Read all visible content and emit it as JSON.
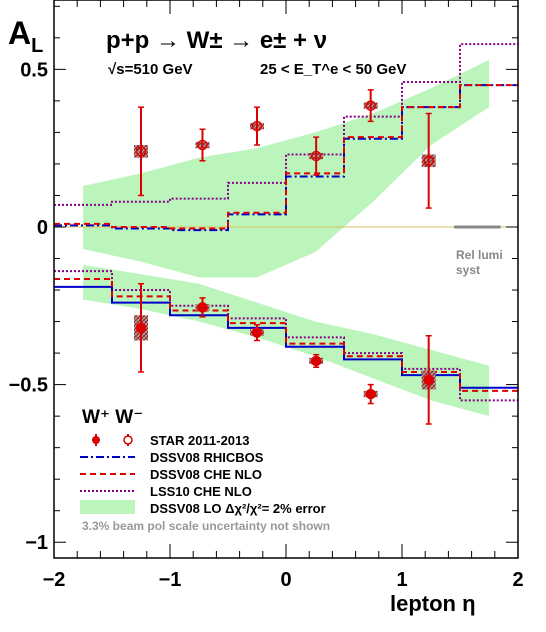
{
  "chart_data": {
    "type": "scatter",
    "y_axis_title": "A",
    "y_axis_title_sub": "L",
    "x_axis_title": "lepton  η",
    "reaction": "p+p → W± → e± + ν",
    "energy_label": "√s=510 GeV",
    "cut_label": "25 < E_T^e < 50 GeV",
    "legend_header": "W⁺ W⁻",
    "rel_lumi_label_1": "Rel lumi",
    "rel_lumi_label_2": "syst",
    "footnote": "3.3% beam pol scale uncertainty not shown",
    "xlim": [
      -2,
      2
    ],
    "ylim": [
      -1.05,
      0.72
    ],
    "x_ticks": [
      -2,
      -1,
      0,
      1,
      2
    ],
    "y_ticks": [
      -1,
      -0.5,
      0,
      0.5
    ],
    "x_tick_labels": [
      "−2",
      "−1",
      "0",
      "1",
      "2"
    ],
    "y_tick_labels": [
      "−1",
      "−0.5",
      "0",
      "0.5"
    ],
    "legend": [
      {
        "label": "STAR 2011-2013",
        "color": "#dd0000"
      },
      {
        "label": "DSSV08  RHICBOS",
        "color": "#0000cc"
      },
      {
        "label": "DSSV08  CHE NLO",
        "color": "#dd0000"
      },
      {
        "label": "LSS10 CHE NLO",
        "color": "#880088"
      },
      {
        "label": "DSSV08 LO  Δχ²/χ²= 2% error",
        "color": "#bbf5bb"
      }
    ],
    "data_wplus": [
      {
        "x": -1.25,
        "y": -0.32,
        "err": 0.14,
        "syst": 0.04
      },
      {
        "x": -0.72,
        "y": -0.255,
        "err": 0.03,
        "syst": 0.01
      },
      {
        "x": -0.25,
        "y": -0.335,
        "err": 0.025,
        "syst": 0.01
      },
      {
        "x": 0.26,
        "y": -0.425,
        "err": 0.02,
        "syst": 0.01
      },
      {
        "x": 0.73,
        "y": -0.53,
        "err": 0.03,
        "syst": 0.01
      },
      {
        "x": 1.23,
        "y": -0.485,
        "err": 0.14,
        "syst": 0.03
      }
    ],
    "data_wminus": [
      {
        "x": -1.25,
        "y": 0.24,
        "err": 0.14,
        "syst": 0.02
      },
      {
        "x": -0.72,
        "y": 0.26,
        "err": 0.05,
        "syst": 0.01
      },
      {
        "x": -0.25,
        "y": 0.32,
        "err": 0.06,
        "syst": 0.01
      },
      {
        "x": 0.26,
        "y": 0.225,
        "err": 0.06,
        "syst": 0.01
      },
      {
        "x": 0.73,
        "y": 0.385,
        "err": 0.05,
        "syst": 0.01
      },
      {
        "x": 1.23,
        "y": 0.21,
        "err": 0.15,
        "syst": 0.02
      }
    ],
    "bin_edges": [
      -2,
      -1.75,
      -1.5,
      -1.25,
      -1,
      -0.75,
      -0.5,
      -0.25,
      0,
      0.25,
      0.5,
      0.75,
      1,
      1.25,
      1.5,
      1.75,
      2
    ],
    "curve_rhicbos_wminus": [
      0.005,
      0.005,
      -0.005,
      -0.005,
      -0.01,
      -0.01,
      0.04,
      0.04,
      0.16,
      0.16,
      0.28,
      0.28,
      0.38,
      0.38,
      0.45,
      0.45
    ],
    "curve_che_wminus": [
      0.01,
      0.01,
      0.0,
      0.0,
      -0.005,
      -0.005,
      0.045,
      0.045,
      0.17,
      0.17,
      0.285,
      0.285,
      0.38,
      0.38,
      0.45,
      0.45
    ],
    "curve_lss_wminus": [
      0.07,
      0.07,
      0.08,
      0.08,
      0.09,
      0.09,
      0.14,
      0.14,
      0.23,
      0.23,
      0.35,
      0.35,
      0.46,
      0.46,
      0.58,
      0.58
    ],
    "curve_rhicbos_wplus": [
      -0.19,
      -0.19,
      -0.24,
      -0.24,
      -0.28,
      -0.28,
      -0.32,
      -0.32,
      -0.38,
      -0.38,
      -0.42,
      -0.42,
      -0.47,
      -0.47,
      -0.51,
      -0.51
    ],
    "curve_che_wplus": [
      -0.165,
      -0.165,
      -0.22,
      -0.22,
      -0.265,
      -0.265,
      -0.305,
      -0.305,
      -0.37,
      -0.37,
      -0.41,
      -0.41,
      -0.46,
      -0.46,
      -0.52,
      -0.52
    ],
    "curve_lss_wplus": [
      -0.14,
      -0.14,
      -0.2,
      -0.2,
      -0.25,
      -0.25,
      -0.29,
      -0.29,
      -0.35,
      -0.35,
      -0.4,
      -0.4,
      -0.45,
      -0.45,
      -0.55,
      -0.55
    ],
    "band_wminus": {
      "x": [
        -1.75,
        -1.25,
        -0.75,
        -0.25,
        0.25,
        0.75,
        1.25,
        1.75
      ],
      "upper": [
        0.13,
        0.17,
        0.22,
        0.25,
        0.3,
        0.36,
        0.44,
        0.53
      ],
      "lower": [
        -0.07,
        -0.11,
        -0.16,
        -0.16,
        -0.08,
        0.08,
        0.26,
        0.38
      ]
    },
    "band_wplus": {
      "x": [
        -1.75,
        -1.25,
        -0.75,
        -0.25,
        0.25,
        0.75,
        1.25,
        1.75
      ],
      "upper": [
        -0.12,
        -0.15,
        -0.18,
        -0.24,
        -0.3,
        -0.34,
        -0.39,
        -0.44
      ],
      "lower": [
        -0.23,
        -0.26,
        -0.3,
        -0.35,
        -0.41,
        -0.48,
        -0.55,
        -0.6
      ]
    },
    "rel_lumi_band": {
      "x": [
        1.45,
        1.85
      ],
      "y": 0
    }
  }
}
